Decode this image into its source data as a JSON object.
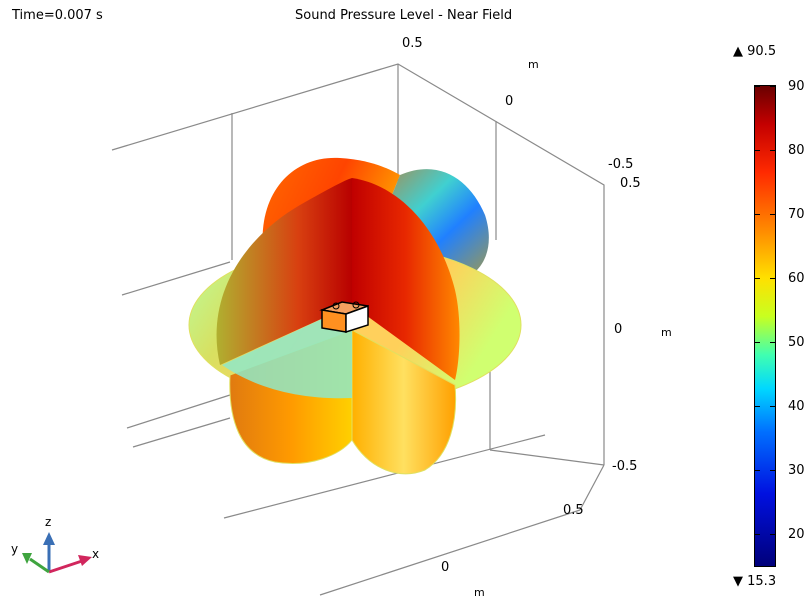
{
  "plot": {
    "time_label": "Time=0.007 s",
    "title": "Sound Pressure Level - Near Field"
  },
  "axes": {
    "z_top": "0.5",
    "m_unit_top": "m",
    "top_back_zero": "0",
    "top_right_neg": "-0.5",
    "top_right_pos": "0.5",
    "right_zero": "0",
    "right_unit": "m",
    "right_neg": "-0.5",
    "bottom_pos": "0.5",
    "bottom_zero": "0",
    "bottom_unit": "m"
  },
  "colorbar": {
    "max_label": "90.5",
    "min_label": "15.3",
    "ticks": [
      "90",
      "80",
      "70",
      "60",
      "50",
      "40",
      "30",
      "20"
    ],
    "colors": [
      "#6a0000",
      "#c40000",
      "#ff2a00",
      "#ff8a00",
      "#ffe000",
      "#c8ff20",
      "#40ffb0",
      "#00d8ff",
      "#0070ff",
      "#0010e0",
      "#00007a"
    ]
  },
  "triad": {
    "x": "x",
    "y": "y",
    "z": "z"
  }
}
